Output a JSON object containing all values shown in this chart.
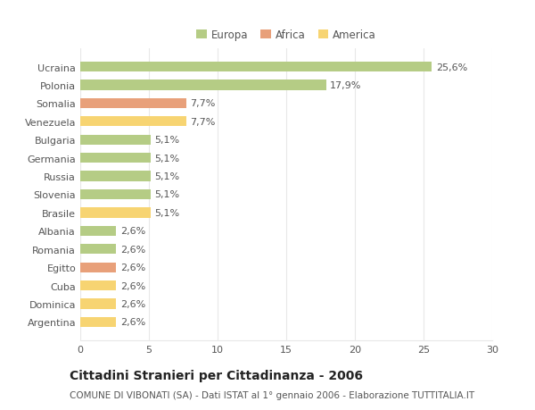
{
  "categories": [
    "Argentina",
    "Dominica",
    "Cuba",
    "Egitto",
    "Romania",
    "Albania",
    "Brasile",
    "Slovenia",
    "Russia",
    "Germania",
    "Bulgaria",
    "Venezuela",
    "Somalia",
    "Polonia",
    "Ucraina"
  ],
  "values": [
    2.6,
    2.6,
    2.6,
    2.6,
    2.6,
    2.6,
    5.1,
    5.1,
    5.1,
    5.1,
    5.1,
    7.7,
    7.7,
    17.9,
    25.6
  ],
  "labels": [
    "2,6%",
    "2,6%",
    "2,6%",
    "2,6%",
    "2,6%",
    "2,6%",
    "5,1%",
    "5,1%",
    "5,1%",
    "5,1%",
    "5,1%",
    "7,7%",
    "7,7%",
    "17,9%",
    "25,6%"
  ],
  "colors": [
    "#f7d472",
    "#f7d472",
    "#f7d472",
    "#e8a07a",
    "#b5cc85",
    "#b5cc85",
    "#f7d472",
    "#b5cc85",
    "#b5cc85",
    "#b5cc85",
    "#b5cc85",
    "#f7d472",
    "#e8a07a",
    "#b5cc85",
    "#b5cc85"
  ],
  "legend": [
    {
      "label": "Europa",
      "color": "#b5cc85"
    },
    {
      "label": "Africa",
      "color": "#e8a07a"
    },
    {
      "label": "America",
      "color": "#f7d472"
    }
  ],
  "xlim": [
    0,
    30
  ],
  "xticks": [
    0,
    5,
    10,
    15,
    20,
    25,
    30
  ],
  "title": "Cittadini Stranieri per Cittadinanza - 2006",
  "subtitle": "COMUNE DI VIBONATI (SA) - Dati ISTAT al 1° gennaio 2006 - Elaborazione TUTTITALIA.IT",
  "background_color": "#ffffff",
  "plot_bg_color": "#ffffff",
  "grid_color": "#e8e8e8",
  "bar_height": 0.55,
  "title_fontsize": 10,
  "subtitle_fontsize": 7.5,
  "tick_fontsize": 8,
  "label_fontsize": 8,
  "legend_fontsize": 8.5,
  "text_color": "#555555"
}
